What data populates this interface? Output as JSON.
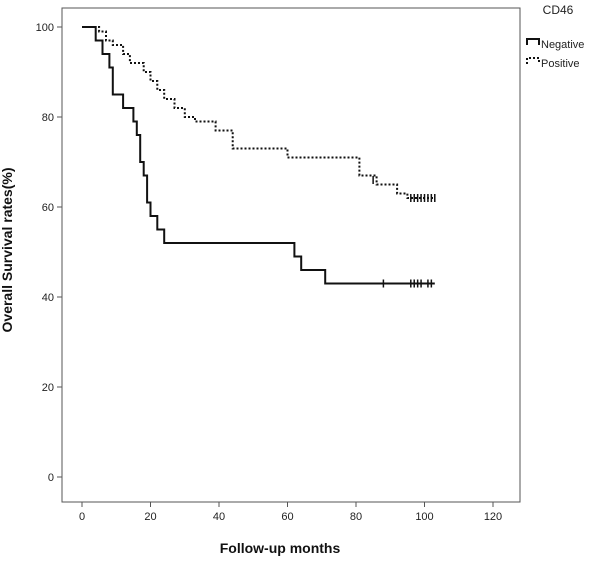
{
  "chart_data": {
    "type": "line",
    "step": true,
    "xlabel": "Follow-up months",
    "ylabel": "Overall Survival rates(%)",
    "xlim": [
      0,
      120
    ],
    "ylim": [
      0,
      100
    ],
    "xticks": [
      0,
      20,
      40,
      60,
      80,
      100,
      120
    ],
    "yticks": [
      0,
      20,
      40,
      60,
      80,
      100
    ],
    "grid": false,
    "legend": {
      "title": "CD46",
      "position": "top-right"
    },
    "series": [
      {
        "name": "Negative",
        "style": "solid",
        "color": "#111111",
        "points": [
          [
            0,
            100
          ],
          [
            4,
            100
          ],
          [
            4,
            97
          ],
          [
            6,
            97
          ],
          [
            6,
            94
          ],
          [
            8,
            94
          ],
          [
            8,
            91
          ],
          [
            9,
            91
          ],
          [
            9,
            85
          ],
          [
            12,
            85
          ],
          [
            12,
            82
          ],
          [
            15,
            82
          ],
          [
            15,
            79
          ],
          [
            16,
            79
          ],
          [
            16,
            76
          ],
          [
            17,
            76
          ],
          [
            17,
            70
          ],
          [
            18,
            70
          ],
          [
            18,
            67
          ],
          [
            19,
            67
          ],
          [
            19,
            61
          ],
          [
            20,
            61
          ],
          [
            20,
            58
          ],
          [
            22,
            58
          ],
          [
            22,
            55
          ],
          [
            24,
            55
          ],
          [
            24,
            52
          ],
          [
            62,
            52
          ],
          [
            62,
            49
          ],
          [
            64,
            49
          ],
          [
            64,
            46
          ],
          [
            71,
            46
          ],
          [
            71,
            43
          ],
          [
            103,
            43
          ]
        ],
        "censored": [
          [
            88,
            43
          ],
          [
            96,
            43
          ],
          [
            97,
            43
          ],
          [
            98,
            43
          ],
          [
            99,
            43
          ],
          [
            101,
            43
          ],
          [
            102,
            43
          ]
        ]
      },
      {
        "name": "Positive",
        "style": "dotted",
        "color": "#111111",
        "points": [
          [
            0,
            100
          ],
          [
            5,
            100
          ],
          [
            5,
            99
          ],
          [
            7,
            99
          ],
          [
            7,
            97
          ],
          [
            9,
            97
          ],
          [
            9,
            96
          ],
          [
            12,
            96
          ],
          [
            12,
            94
          ],
          [
            14,
            94
          ],
          [
            14,
            92
          ],
          [
            18,
            92
          ],
          [
            18,
            90
          ],
          [
            20,
            90
          ],
          [
            20,
            88
          ],
          [
            22,
            88
          ],
          [
            22,
            86
          ],
          [
            24,
            86
          ],
          [
            24,
            84
          ],
          [
            27,
            84
          ],
          [
            27,
            82
          ],
          [
            30,
            82
          ],
          [
            30,
            80
          ],
          [
            33,
            80
          ],
          [
            33,
            79
          ],
          [
            39,
            79
          ],
          [
            39,
            77
          ],
          [
            44,
            77
          ],
          [
            44,
            73
          ],
          [
            60,
            73
          ],
          [
            60,
            71
          ],
          [
            81,
            71
          ],
          [
            81,
            67
          ],
          [
            86,
            67
          ],
          [
            86,
            65
          ],
          [
            92,
            65
          ],
          [
            92,
            63
          ],
          [
            95,
            63
          ],
          [
            95,
            62
          ],
          [
            103,
            62
          ]
        ],
        "censored": [
          [
            85,
            66
          ],
          [
            96,
            62
          ],
          [
            97,
            62
          ],
          [
            98,
            62
          ],
          [
            99,
            62
          ],
          [
            100,
            62
          ],
          [
            101,
            62
          ],
          [
            102,
            62
          ],
          [
            103,
            62
          ]
        ]
      }
    ]
  }
}
